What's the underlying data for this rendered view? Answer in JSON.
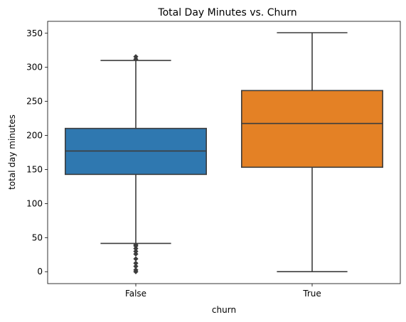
{
  "chart_data": {
    "type": "box",
    "title": "Total Day Minutes vs. Churn",
    "xlabel": "churn",
    "ylabel": "total day minutes",
    "ylim": [
      -17.5,
      367.5
    ],
    "yticks": [
      0,
      50,
      100,
      150,
      200,
      250,
      300,
      350
    ],
    "grid": false,
    "categories": [
      "False",
      "True"
    ],
    "boxes": [
      {
        "category": "False",
        "color": "#2f78b0",
        "whisker_low": 41.5,
        "q1": 142.8,
        "median": 177.2,
        "q3": 210.3,
        "whisker_high": 310.0,
        "outliers": [
          0,
          2.6,
          7.9,
          12.5,
          18.9,
          25.9,
          29.9,
          34.0,
          37.8,
          39.5,
          312.0,
          315.6
        ]
      },
      {
        "category": "True",
        "color": "#e48125",
        "whisker_low": 0,
        "q1": 153.3,
        "median": 217.6,
        "q3": 265.9,
        "whisker_high": 350.8,
        "outliers": []
      }
    ]
  }
}
